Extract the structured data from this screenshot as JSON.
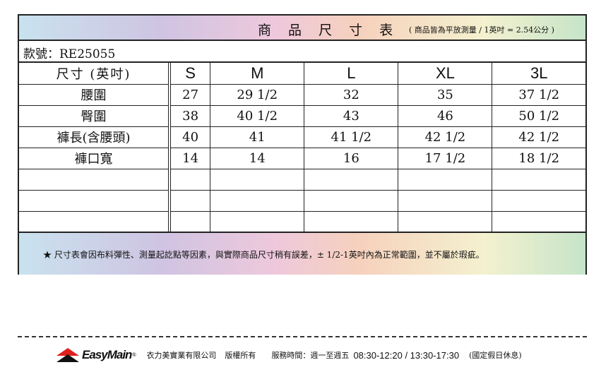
{
  "title": "商 品 尺 寸 表",
  "subtitle": "( 商品皆為平放測量 / 1英吋 = 2.54公分 )",
  "model": "款號：RE25055",
  "table": {
    "header": [
      "尺寸 (英吋)",
      "S",
      "M",
      "L",
      "XL",
      "3L"
    ],
    "rows": [
      [
        "腰圍",
        "27",
        "29 1/2",
        "32",
        "35",
        "37 1/2"
      ],
      [
        "臀圍",
        "38",
        "40 1/2",
        "43",
        "46",
        "50 1/2"
      ],
      [
        "褲長(含腰頭)",
        "40",
        "41",
        "41 1/2",
        "42 1/2",
        "42 1/2"
      ],
      [
        "褲口寬",
        "14",
        "14",
        "16",
        "17 1/2",
        "18 1/2"
      ],
      [
        "",
        "",
        "",
        "",
        "",
        ""
      ],
      [
        "",
        "",
        "",
        "",
        "",
        ""
      ],
      [
        "",
        "",
        "",
        "",
        "",
        ""
      ]
    ]
  },
  "note": "★ 尺寸表會因布料彈性、測量起訖點等因素，與實際商品尺寸稍有誤差，± 1/2-1英吋內為正常範圍，並不屬於瑕疵。",
  "footer": {
    "brand": "EasyMain",
    "brand_mark": "®",
    "company": "衣力美實業有限公司",
    "rights": "版權所有",
    "service_label": "服務時間：週一至週五",
    "hours": "08:30-12:20 / 13:30-17:30",
    "holiday": "(國定假日休息)"
  },
  "colors": {
    "logo_red": "#e0201c",
    "logo_black": "#111111"
  }
}
